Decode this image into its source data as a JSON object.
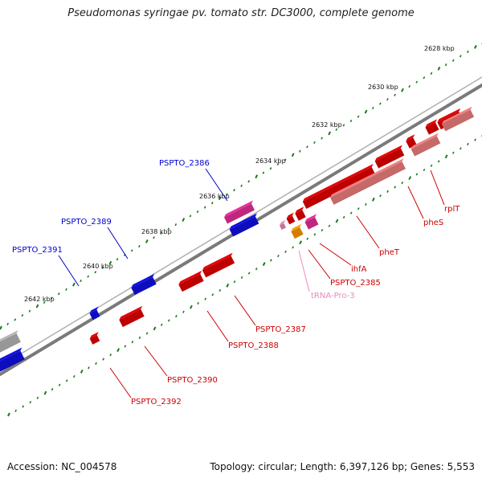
{
  "title": "Pseudomonas syringae pv. tomato str. DC3000, complete genome",
  "accession": "Accession: NC_004578",
  "topology": "Topology: circular; Length: 6,397,126 bp; Genes: 5,553",
  "colors": {
    "forward_gene": "#1010e6",
    "reverse_gene": "#e60000",
    "reverse_gene_light": "#f08080",
    "trna": "#e8309a",
    "highlight": "#ff9900",
    "backbone": "#7a7a7a",
    "tick": "#1a7a1a",
    "label_blue": "#0000cc",
    "label_red": "#cc0000",
    "label_pink": "#ee88bb"
  },
  "scale_labels": [
    "2628 kbp",
    "2630 kbp",
    "2632 kbp",
    "2634 kbp",
    "2636 kbp",
    "2638 kbp",
    "2640 kbp",
    "2642 kbp"
  ],
  "gene_labels": {
    "forward": [
      "PSPTO_2386",
      "PSPTO_2389",
      "PSPTO_2391"
    ],
    "reverse": [
      "rplT",
      "pheS",
      "pheT",
      "ihfA",
      "PSPTO_2385",
      "tRNA-Pro-3",
      "PSPTO_2387",
      "PSPTO_2388",
      "PSPTO_2390",
      "PSPTO_2392"
    ]
  }
}
